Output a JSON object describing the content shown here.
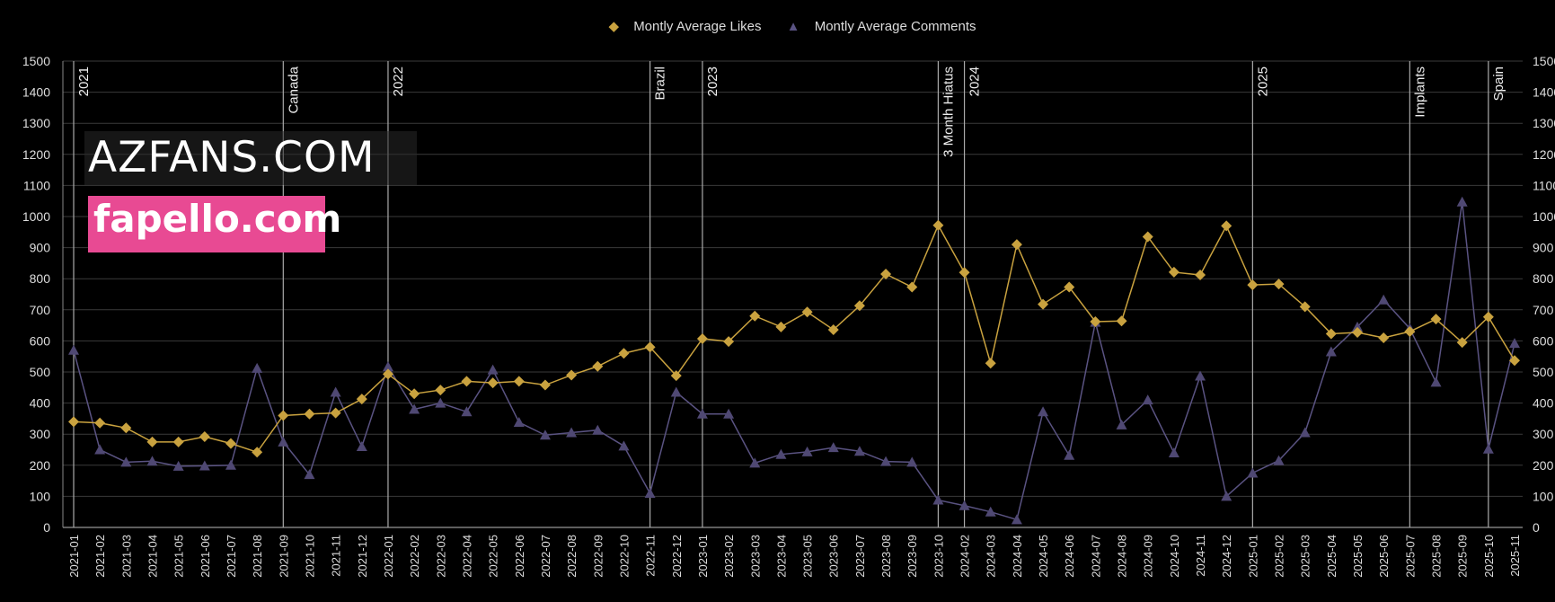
{
  "legend": {
    "likes_label": "Montly Average Likes",
    "comments_label": "Montly Average Comments"
  },
  "watermarks": {
    "az": "AZFANS.COM",
    "fapello": "fapello.com"
  },
  "chart_data": {
    "type": "line",
    "categories": [
      "2021-01",
      "2021-02",
      "2021-03",
      "2021-04",
      "2021-05",
      "2021-06",
      "2021-07",
      "2021-08",
      "2021-09",
      "2021-10",
      "2021-11",
      "2021-12",
      "2022-01",
      "2022-02",
      "2022-03",
      "2022-04",
      "2022-05",
      "2022-06",
      "2022-07",
      "2022-08",
      "2022-09",
      "2022-10",
      "2022-11",
      "2022-12",
      "2023-01",
      "2023-02",
      "2023-03",
      "2023-04",
      "2023-05",
      "2023-06",
      "2023-07",
      "2023-08",
      "2023-09",
      "2023-10",
      "2024-02",
      "2024-03",
      "2024-04",
      "2024-05",
      "2024-06",
      "2024-07",
      "2024-08",
      "2024-09",
      "2024-10",
      "2024-11",
      "2024-12",
      "2025-01",
      "2025-02",
      "2025-03",
      "2025-04",
      "2025-05",
      "2025-06",
      "2025-07",
      "2025-08",
      "2025-09",
      "2025-10",
      "2025-11"
    ],
    "series": [
      {
        "name": "Montly Average Likes",
        "color": "#c9a23f",
        "marker": "diamond",
        "values": [
          340,
          336,
          320,
          275,
          275,
          292,
          270,
          242,
          360,
          365,
          368,
          413,
          493,
          430,
          442,
          470,
          465,
          470,
          458,
          490,
          518,
          560,
          580,
          488,
          607,
          598,
          680,
          645,
          693,
          636,
          713,
          815,
          773,
          972,
          820,
          528,
          910,
          718,
          773,
          662,
          664,
          935,
          821,
          812,
          970,
          780,
          783,
          710,
          623,
          627,
          610,
          630,
          670,
          595,
          677,
          537
        ]
      },
      {
        "name": "Montly Average Comments",
        "color": "#4f4873",
        "marker": "triangle",
        "values": [
          570,
          250,
          210,
          213,
          197,
          198,
          200,
          512,
          275,
          170,
          435,
          260,
          517,
          380,
          400,
          372,
          507,
          338,
          297,
          305,
          313,
          262,
          110,
          435,
          365,
          365,
          207,
          235,
          243,
          257,
          245,
          212,
          210,
          88,
          70,
          50,
          25,
          372,
          232,
          660,
          330,
          410,
          240,
          487,
          100,
          175,
          215,
          305,
          565,
          645,
          732,
          640,
          467,
          1047,
          252,
          592
        ]
      }
    ],
    "annotations": [
      {
        "at": "2021-01",
        "label": "2021"
      },
      {
        "at": "2021-09",
        "label": "Canada"
      },
      {
        "at": "2022-01",
        "label": "2022"
      },
      {
        "at": "2022-11",
        "label": "Brazil"
      },
      {
        "at": "2023-01",
        "label": "2023"
      },
      {
        "at": "2023-10",
        "label": "3 Month Hiatus"
      },
      {
        "at": "2024-02",
        "label": "2024"
      },
      {
        "at": "2025-01",
        "label": "2025"
      },
      {
        "at": "2025-07",
        "label": "Implants"
      },
      {
        "at": "2025-10",
        "label": "Spain"
      }
    ],
    "ylim": [
      0,
      1500
    ],
    "yticks": [
      0,
      100,
      200,
      300,
      400,
      500,
      600,
      700,
      800,
      900,
      1000,
      1100,
      1200,
      1300,
      1400,
      1500
    ],
    "y_axis_both_sides": true,
    "grid": true,
    "legend_position": "top-center",
    "background": "#000000"
  }
}
